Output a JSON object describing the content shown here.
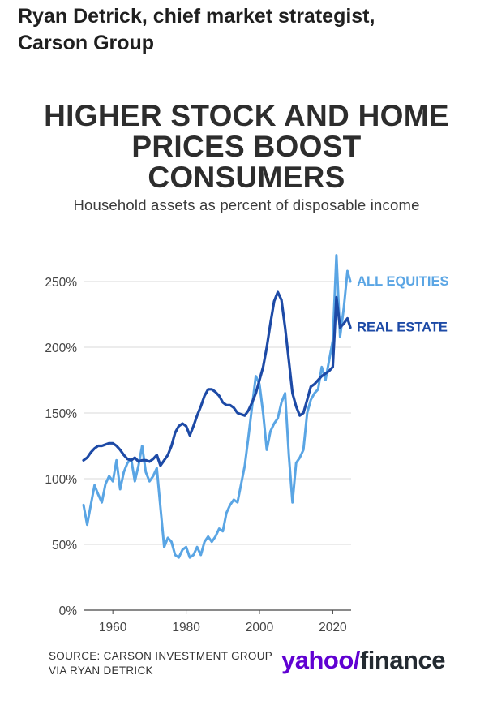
{
  "header": {
    "line1": "Ryan Detrick, chief market strategist,",
    "line2": "Carson Group"
  },
  "footer": {
    "source_line1": "SOURCE: CARSON INVESTMENT GROUP",
    "source_line2": "VIA RYAN DETRICK",
    "logo_yahoo": "yahoo",
    "logo_slash": "/",
    "logo_finance": "finance"
  },
  "chart_data": {
    "type": "line",
    "title_line1": "HIGHER STOCK AND HOME",
    "title_line2": "PRICES BOOST",
    "title_line3": "CONSUMERS",
    "subtitle": "Household assets as percent of disposable income",
    "xlabel": "",
    "ylabel": "",
    "xlim": [
      1952,
      2025
    ],
    "ylim": [
      0,
      250
    ],
    "y_ticks": [
      0,
      50,
      100,
      150,
      200,
      250
    ],
    "y_tick_labels": [
      "0%",
      "50%",
      "100%",
      "150%",
      "200%",
      "250%"
    ],
    "x_ticks": [
      1960,
      1980,
      2000,
      2020
    ],
    "x_tick_labels": [
      "1960",
      "1980",
      "2000",
      "2020"
    ],
    "grid": "horizontal",
    "legend": "direct labels at right end of lines",
    "series": [
      {
        "name": "ALL EQUITIES",
        "color": "#5aa5e4",
        "x": [
          1952,
          1953,
          1954,
          1955,
          1956,
          1957,
          1958,
          1959,
          1960,
          1961,
          1962,
          1963,
          1964,
          1965,
          1966,
          1967,
          1968,
          1969,
          1970,
          1971,
          1972,
          1973,
          1974,
          1975,
          1976,
          1977,
          1978,
          1979,
          1980,
          1981,
          1982,
          1983,
          1984,
          1985,
          1986,
          1987,
          1988,
          1989,
          1990,
          1991,
          1992,
          1993,
          1994,
          1995,
          1996,
          1997,
          1998,
          1999,
          2000,
          2001,
          2002,
          2003,
          2004,
          2005,
          2006,
          2007,
          2008,
          2009,
          2010,
          2011,
          2012,
          2013,
          2014,
          2015,
          2016,
          2017,
          2018,
          2019,
          2020,
          2021,
          2022,
          2023,
          2024,
          2024.8
        ],
        "values": [
          80,
          65,
          80,
          95,
          88,
          82,
          96,
          102,
          98,
          114,
          92,
          105,
          112,
          115,
          98,
          110,
          125,
          105,
          98,
          102,
          108,
          78,
          48,
          55,
          52,
          42,
          40,
          46,
          48,
          40,
          42,
          48,
          42,
          52,
          56,
          52,
          56,
          62,
          60,
          74,
          80,
          84,
          82,
          96,
          110,
          132,
          155,
          178,
          172,
          150,
          122,
          136,
          142,
          146,
          158,
          165,
          118,
          82,
          112,
          116,
          122,
          150,
          160,
          165,
          168,
          185,
          175,
          190,
          205,
          270,
          208,
          230,
          258,
          250
        ]
      },
      {
        "name": "REAL ESTATE",
        "color": "#1d4aa6",
        "x": [
          1952,
          1953,
          1954,
          1955,
          1956,
          1957,
          1958,
          1959,
          1960,
          1961,
          1962,
          1963,
          1964,
          1965,
          1966,
          1967,
          1968,
          1969,
          1970,
          1971,
          1972,
          1973,
          1974,
          1975,
          1976,
          1977,
          1978,
          1979,
          1980,
          1981,
          1982,
          1983,
          1984,
          1985,
          1986,
          1987,
          1988,
          1989,
          1990,
          1991,
          1992,
          1993,
          1994,
          1995,
          1996,
          1997,
          1998,
          1999,
          2000,
          2001,
          2002,
          2003,
          2004,
          2005,
          2006,
          2007,
          2008,
          2009,
          2010,
          2011,
          2012,
          2013,
          2014,
          2015,
          2016,
          2017,
          2018,
          2019,
          2020,
          2021,
          2022,
          2023,
          2024,
          2024.8
        ],
        "values": [
          114,
          116,
          120,
          123,
          125,
          125,
          126,
          127,
          127,
          125,
          122,
          118,
          115,
          114,
          116,
          113,
          114,
          114,
          113,
          115,
          118,
          110,
          114,
          118,
          125,
          135,
          140,
          142,
          140,
          133,
          140,
          148,
          155,
          163,
          168,
          168,
          166,
          163,
          158,
          156,
          156,
          154,
          150,
          149,
          148,
          152,
          158,
          165,
          175,
          185,
          200,
          218,
          235,
          242,
          236,
          215,
          190,
          165,
          155,
          148,
          150,
          160,
          170,
          172,
          175,
          178,
          180,
          182,
          185,
          238,
          215,
          218,
          222,
          215
        ]
      }
    ]
  }
}
